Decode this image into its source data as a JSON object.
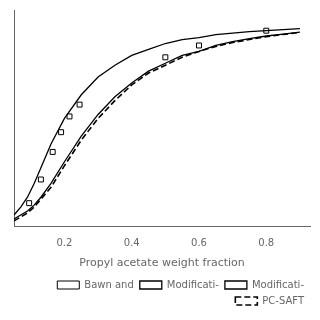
{
  "chart_data": {
    "type": "line",
    "xlabel": "Propyl acetate weight fraction",
    "xlim": [
      0.05,
      0.93
    ],
    "ylim": [
      -0.02,
      1.08
    ],
    "xticks": [
      0.2,
      0.4,
      0.6,
      0.8
    ],
    "tick_labels": "x",
    "grid": false,
    "legend": "lower right",
    "series": [
      {
        "name": "Modificati-",
        "color": "#000000",
        "line_style": "solid",
        "x": [
          0.05,
          0.07,
          0.09,
          0.11,
          0.13,
          0.16,
          0.2,
          0.25,
          0.3,
          0.35,
          0.4,
          0.45,
          0.5,
          0.55,
          0.6,
          0.65,
          0.7,
          0.75,
          0.8,
          0.85,
          0.9
        ],
        "values": [
          0.04,
          0.08,
          0.13,
          0.2,
          0.28,
          0.4,
          0.53,
          0.65,
          0.74,
          0.8,
          0.85,
          0.88,
          0.91,
          0.93,
          0.94,
          0.955,
          0.963,
          0.97,
          0.975,
          0.98,
          0.985
        ]
      },
      {
        "name": "Modificati-",
        "color": "#000000",
        "line_style": "solid",
        "x": [
          0.05,
          0.07,
          0.09,
          0.11,
          0.13,
          0.16,
          0.2,
          0.25,
          0.3,
          0.35,
          0.4,
          0.45,
          0.5,
          0.55,
          0.6,
          0.65,
          0.7,
          0.75,
          0.8,
          0.85,
          0.9
        ],
        "values": [
          0.02,
          0.04,
          0.06,
          0.09,
          0.13,
          0.2,
          0.31,
          0.44,
          0.55,
          0.64,
          0.71,
          0.77,
          0.81,
          0.85,
          0.87,
          0.9,
          0.92,
          0.935,
          0.948,
          0.958,
          0.968
        ]
      },
      {
        "name": "PC-SAFT",
        "color": "#000000",
        "line_style": "dashed",
        "x": [
          0.05,
          0.07,
          0.09,
          0.11,
          0.13,
          0.16,
          0.2,
          0.25,
          0.3,
          0.35,
          0.4,
          0.45,
          0.5,
          0.55,
          0.6,
          0.65,
          0.7,
          0.75,
          0.8,
          0.85,
          0.9
        ],
        "values": [
          0.01,
          0.03,
          0.05,
          0.08,
          0.12,
          0.18,
          0.29,
          0.42,
          0.53,
          0.62,
          0.7,
          0.76,
          0.8,
          0.84,
          0.87,
          0.895,
          0.915,
          0.93,
          0.945,
          0.956,
          0.966
        ]
      },
      {
        "name": "Bawn and",
        "color": "#000000",
        "type": "scatter",
        "marker": "square",
        "x": [
          0.095,
          0.13,
          0.165,
          0.19,
          0.215,
          0.245,
          0.5,
          0.6,
          0.8
        ],
        "values": [
          0.1,
          0.22,
          0.36,
          0.46,
          0.54,
          0.6,
          0.84,
          0.9,
          0.975
        ]
      }
    ]
  }
}
